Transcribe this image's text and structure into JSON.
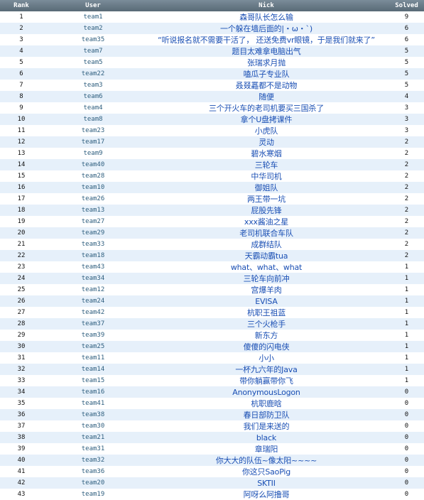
{
  "headers": {
    "rank": "Rank",
    "user": "User",
    "nick": "Nick",
    "solved": "Solved"
  },
  "rows": [
    {
      "rank": "1",
      "user": "team1",
      "nick": "森哥队长怎么输",
      "solved": "9"
    },
    {
      "rank": "2",
      "user": "team2",
      "nick": "一个躲在墙后面的|・ω・`)",
      "solved": "6"
    },
    {
      "rank": "3",
      "user": "team35",
      "nick": "“听说报名就不需要干活了，  还送免费vr眼镜，于是我们就来了”",
      "solved": "6"
    },
    {
      "rank": "4",
      "user": "team7",
      "nick": "题目太难拿电脑出气",
      "solved": "5"
    },
    {
      "rank": "5",
      "user": "team5",
      "nick": "张瑞求月抛",
      "solved": "5"
    },
    {
      "rank": "6",
      "user": "team22",
      "nick": "嗑瓜子专业队",
      "solved": "5"
    },
    {
      "rank": "7",
      "user": "team3",
      "nick": "叒叕靐都不是动物",
      "solved": "5"
    },
    {
      "rank": "8",
      "user": "team6",
      "nick": "随便",
      "solved": "4"
    },
    {
      "rank": "9",
      "user": "team4",
      "nick": "三个开火车的老司机要买三国杀了",
      "solved": "3"
    },
    {
      "rank": "10",
      "user": "team8",
      "nick": "拿个U盘拷课件",
      "solved": "3"
    },
    {
      "rank": "11",
      "user": "team23",
      "nick": "小虎队",
      "solved": "3"
    },
    {
      "rank": "12",
      "user": "team17",
      "nick": "灵动",
      "solved": "2"
    },
    {
      "rank": "13",
      "user": "team9",
      "nick": "碧水寒烟",
      "solved": "2"
    },
    {
      "rank": "14",
      "user": "team40",
      "nick": "三轮车",
      "solved": "2"
    },
    {
      "rank": "15",
      "user": "team28",
      "nick": "中华司机",
      "solved": "2"
    },
    {
      "rank": "16",
      "user": "team10",
      "nick": "御姐队",
      "solved": "2"
    },
    {
      "rank": "17",
      "user": "team26",
      "nick": "两王带一坑",
      "solved": "2"
    },
    {
      "rank": "18",
      "user": "team13",
      "nick": "屁股先锋",
      "solved": "2"
    },
    {
      "rank": "19",
      "user": "team27",
      "nick": "xxx酱油之星",
      "solved": "2"
    },
    {
      "rank": "20",
      "user": "team29",
      "nick": "老司机联合车队",
      "solved": "2"
    },
    {
      "rank": "21",
      "user": "team33",
      "nick": "成群结队",
      "solved": "2"
    },
    {
      "rank": "22",
      "user": "team18",
      "nick": "天霸动霸tua",
      "solved": "2"
    },
    {
      "rank": "23",
      "user": "team43",
      "nick": "what、what、what",
      "solved": "1"
    },
    {
      "rank": "24",
      "user": "team34",
      "nick": "三轮车向前冲",
      "solved": "1"
    },
    {
      "rank": "25",
      "user": "team12",
      "nick": "宫爆羊肉",
      "solved": "1"
    },
    {
      "rank": "26",
      "user": "team24",
      "nick": "EVISA",
      "solved": "1"
    },
    {
      "rank": "27",
      "user": "team42",
      "nick": "杭职王祖蓝",
      "solved": "1"
    },
    {
      "rank": "28",
      "user": "team37",
      "nick": "三个火枪手",
      "solved": "1"
    },
    {
      "rank": "29",
      "user": "team39",
      "nick": "新东方",
      "solved": "1"
    },
    {
      "rank": "30",
      "user": "team25",
      "nick": "傻傻的闪电侠",
      "solved": "1"
    },
    {
      "rank": "31",
      "user": "team11",
      "nick": "小小",
      "solved": "1"
    },
    {
      "rank": "32",
      "user": "team14",
      "nick": "一杯九六年的Java",
      "solved": "1"
    },
    {
      "rank": "33",
      "user": "team15",
      "nick": "带你躺赢带你飞",
      "solved": "1"
    },
    {
      "rank": "34",
      "user": "team16",
      "nick": "AnonymousLogon",
      "solved": "0"
    },
    {
      "rank": "35",
      "user": "team41",
      "nick": "杭职鹿晗",
      "solved": "0"
    },
    {
      "rank": "36",
      "user": "team38",
      "nick": "春日部防卫队",
      "solved": "0"
    },
    {
      "rank": "37",
      "user": "team30",
      "nick": "我们是来送的",
      "solved": "0"
    },
    {
      "rank": "38",
      "user": "team21",
      "nick": "black",
      "solved": "0"
    },
    {
      "rank": "39",
      "user": "team31",
      "nick": "章瑞阳",
      "solved": "0"
    },
    {
      "rank": "40",
      "user": "team32",
      "nick": "你大大的队伍~像太阳~~~~",
      "solved": "0"
    },
    {
      "rank": "41",
      "user": "team36",
      "nick": "你这只SaoPig",
      "solved": "0"
    },
    {
      "rank": "42",
      "user": "team20",
      "nick": "SKTII",
      "solved": "0"
    },
    {
      "rank": "43",
      "user": "team19",
      "nick": "阿呀么阿撸哥",
      "solved": "0"
    }
  ]
}
